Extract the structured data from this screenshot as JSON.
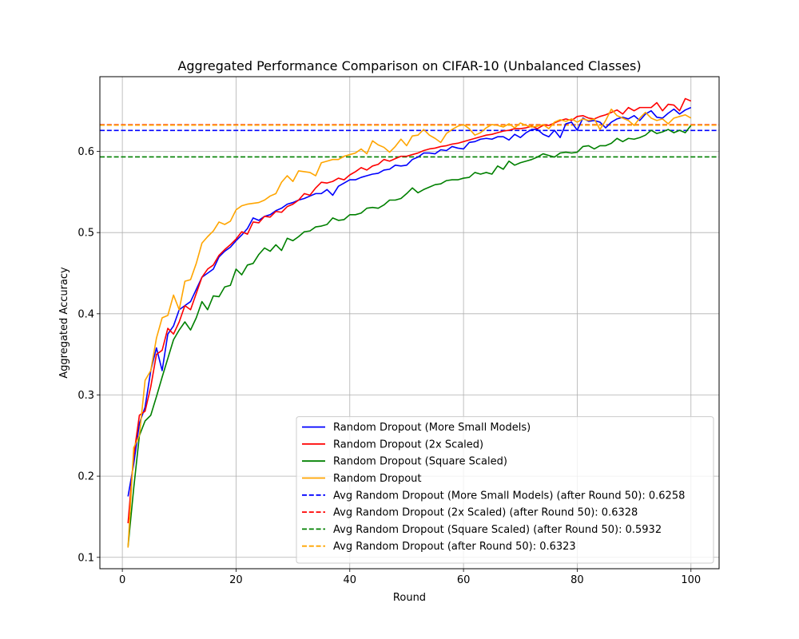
{
  "chart_data": {
    "type": "line",
    "title": "Aggregated Performance Comparison on CIFAR-10 (Unbalanced Classes)",
    "xlabel": "Round",
    "ylabel": "Aggregated Accuracy",
    "xlim": [
      -3.95,
      104.95
    ],
    "ylim": [
      0.086,
      0.692
    ],
    "xticks": [
      0,
      20,
      40,
      60,
      80,
      100
    ],
    "yticks": [
      0.1,
      0.2,
      0.3,
      0.4,
      0.5,
      0.6
    ],
    "ytick_labels": [
      "0.1",
      "0.2",
      "0.3",
      "0.4",
      "0.5",
      "0.6"
    ],
    "grid": true,
    "legend_position": "lower-right",
    "x_start": 1,
    "series": [
      {
        "name": "Random Dropout (More Small Models)",
        "color": "#0000ff",
        "style": "solid",
        "values": [
          0.175,
          0.215,
          0.265,
          0.285,
          0.33,
          0.358,
          0.33,
          0.375,
          0.385,
          0.405,
          0.41,
          0.415,
          0.43,
          0.445,
          0.45,
          0.455,
          0.47,
          0.477,
          0.482,
          0.49,
          0.497,
          0.505,
          0.518,
          0.515,
          0.52,
          0.522,
          0.527,
          0.53,
          0.535,
          0.537,
          0.54,
          0.542,
          0.545,
          0.548,
          0.548,
          0.553,
          0.546,
          0.557,
          0.561,
          0.565,
          0.565,
          0.568,
          0.57,
          0.572,
          0.573,
          0.577,
          0.578,
          0.583,
          0.582,
          0.583,
          0.59,
          0.593,
          0.598,
          0.598,
          0.597,
          0.602,
          0.601,
          0.606,
          0.604,
          0.603,
          0.611,
          0.612,
          0.615,
          0.616,
          0.615,
          0.618,
          0.618,
          0.614,
          0.621,
          0.617,
          0.623,
          0.627,
          0.627,
          0.621,
          0.618,
          0.626,
          0.617,
          0.634,
          0.636,
          0.626,
          0.641,
          0.637,
          0.638,
          0.636,
          0.629,
          0.636,
          0.64,
          0.642,
          0.64,
          0.644,
          0.638,
          0.646,
          0.65,
          0.642,
          0.641,
          0.647,
          0.652,
          0.646,
          0.651,
          0.654
        ]
      },
      {
        "name": "Random Dropout (2x Scaled)",
        "color": "#ff0000",
        "style": "solid",
        "values": [
          0.142,
          0.225,
          0.275,
          0.28,
          0.31,
          0.35,
          0.355,
          0.382,
          0.375,
          0.39,
          0.41,
          0.405,
          0.425,
          0.445,
          0.455,
          0.46,
          0.472,
          0.479,
          0.485,
          0.492,
          0.501,
          0.498,
          0.513,
          0.512,
          0.52,
          0.519,
          0.526,
          0.525,
          0.532,
          0.535,
          0.54,
          0.548,
          0.546,
          0.555,
          0.562,
          0.561,
          0.563,
          0.567,
          0.565,
          0.571,
          0.575,
          0.58,
          0.577,
          0.582,
          0.584,
          0.59,
          0.588,
          0.591,
          0.594,
          0.594,
          0.596,
          0.598,
          0.601,
          0.603,
          0.604,
          0.606,
          0.607,
          0.609,
          0.61,
          0.612,
          0.614,
          0.616,
          0.618,
          0.62,
          0.621,
          0.623,
          0.625,
          0.626,
          0.628,
          0.628,
          0.629,
          0.631,
          0.628,
          0.632,
          0.632,
          0.635,
          0.638,
          0.64,
          0.638,
          0.643,
          0.644,
          0.641,
          0.64,
          0.643,
          0.645,
          0.648,
          0.651,
          0.646,
          0.654,
          0.65,
          0.654,
          0.654,
          0.654,
          0.66,
          0.65,
          0.658,
          0.657,
          0.65,
          0.665,
          0.662
        ]
      },
      {
        "name": "Random Dropout (Square Scaled)",
        "color": "#008000",
        "style": "solid",
        "values": [
          0.113,
          0.185,
          0.25,
          0.268,
          0.275,
          0.298,
          0.322,
          0.345,
          0.368,
          0.38,
          0.39,
          0.38,
          0.395,
          0.415,
          0.405,
          0.422,
          0.421,
          0.433,
          0.435,
          0.455,
          0.448,
          0.46,
          0.462,
          0.473,
          0.481,
          0.477,
          0.485,
          0.478,
          0.493,
          0.49,
          0.495,
          0.501,
          0.502,
          0.507,
          0.508,
          0.51,
          0.518,
          0.515,
          0.516,
          0.522,
          0.522,
          0.524,
          0.53,
          0.531,
          0.53,
          0.534,
          0.54,
          0.54,
          0.542,
          0.548,
          0.555,
          0.549,
          0.553,
          0.556,
          0.559,
          0.56,
          0.564,
          0.565,
          0.565,
          0.567,
          0.568,
          0.574,
          0.572,
          0.574,
          0.572,
          0.582,
          0.578,
          0.588,
          0.583,
          0.586,
          0.588,
          0.59,
          0.593,
          0.597,
          0.595,
          0.593,
          0.598,
          0.599,
          0.598,
          0.599,
          0.606,
          0.607,
          0.603,
          0.607,
          0.607,
          0.61,
          0.616,
          0.612,
          0.616,
          0.615,
          0.617,
          0.62,
          0.626,
          0.622,
          0.624,
          0.627,
          0.623,
          0.626,
          0.623,
          0.632
        ]
      },
      {
        "name": "Random Dropout",
        "color": "#ffa500",
        "style": "solid",
        "values": [
          0.112,
          0.235,
          0.25,
          0.318,
          0.33,
          0.37,
          0.395,
          0.398,
          0.423,
          0.405,
          0.44,
          0.442,
          0.462,
          0.487,
          0.495,
          0.502,
          0.513,
          0.51,
          0.514,
          0.528,
          0.533,
          0.535,
          0.536,
          0.537,
          0.54,
          0.545,
          0.548,
          0.562,
          0.57,
          0.563,
          0.576,
          0.575,
          0.574,
          0.57,
          0.586,
          0.588,
          0.59,
          0.59,
          0.594,
          0.596,
          0.598,
          0.603,
          0.597,
          0.613,
          0.608,
          0.605,
          0.599,
          0.606,
          0.615,
          0.607,
          0.619,
          0.62,
          0.627,
          0.62,
          0.616,
          0.611,
          0.622,
          0.627,
          0.631,
          0.633,
          0.628,
          0.62,
          0.623,
          0.629,
          0.633,
          0.632,
          0.63,
          0.634,
          0.629,
          0.635,
          0.632,
          0.63,
          0.631,
          0.633,
          0.628,
          0.636,
          0.639,
          0.637,
          0.64,
          0.636,
          0.64,
          0.638,
          0.64,
          0.627,
          0.638,
          0.652,
          0.644,
          0.641,
          0.638,
          0.632,
          0.641,
          0.648,
          0.641,
          0.638,
          0.64,
          0.634,
          0.641,
          0.643,
          0.645,
          0.641
        ]
      },
      {
        "name": "Avg Random Dropout (More Small Models) (after Round 50): 0.6258",
        "color": "#0000ff",
        "style": "dashed",
        "hline": 0.6258
      },
      {
        "name": "Avg Random Dropout (2x Scaled) (after Round 50): 0.6328",
        "color": "#ff0000",
        "style": "dashed",
        "hline": 0.6328
      },
      {
        "name": "Avg Random Dropout (Square Scaled) (after Round 50): 0.5932",
        "color": "#008000",
        "style": "dashed",
        "hline": 0.5932
      },
      {
        "name": "Avg Random Dropout (after Round 50): 0.6323",
        "color": "#ffa500",
        "style": "dashed",
        "hline": 0.6323
      }
    ]
  }
}
